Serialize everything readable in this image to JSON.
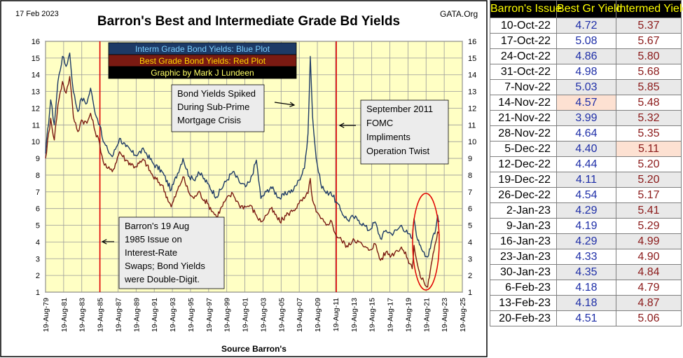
{
  "chart_data": {
    "type": "line",
    "date_stamp": "17 Feb 2023",
    "title": "Barron's Best and Intermediate Grade Bd Yields",
    "source_tag": "GATA.Org",
    "xlabel": "Source Barron's",
    "ylim": [
      1,
      16
    ],
    "y_ticks": [
      1,
      2,
      3,
      4,
      5,
      6,
      7,
      8,
      9,
      10,
      11,
      12,
      13,
      14,
      15,
      16
    ],
    "x_range": [
      1979.63,
      2025.63
    ],
    "x_ticks": [
      "19-Aug-79",
      "19-Aug-81",
      "19-Aug-83",
      "19-Aug-85",
      "19-Aug-87",
      "19-Aug-89",
      "19-Aug-91",
      "19-Aug-93",
      "19-Aug-95",
      "19-Aug-97",
      "19-Aug-99",
      "19-Aug-01",
      "19-Aug-03",
      "19-Aug-05",
      "19-Aug-07",
      "19-Aug-09",
      "19-Aug-11",
      "19-Aug-13",
      "19-Aug-15",
      "19-Aug-17",
      "19-Aug-19",
      "19-Aug-21",
      "19-Aug-23",
      "19-Aug-25"
    ],
    "grid": true,
    "legend": {
      "position": "top-left",
      "entries": [
        {
          "text": "Interm Grade Bond Yields: Blue Plot",
          "color": "#7cd0ff",
          "bg": "#1d3a66"
        },
        {
          "text": "Best Grade Bond Yields: Red Plot",
          "color": "#ffd700",
          "bg": "#7a1a12"
        },
        {
          "text": "Graphic by Mark J Lundeen",
          "color": "#ffff66",
          "bg": "#000000"
        }
      ]
    },
    "vertical_markers": [
      1985.63,
      2011.72
    ],
    "annotations": [
      {
        "id": "subprime",
        "lines": [
          "Bond Yields Spiked",
          "During Sub-Prime",
          "Mortgage Crisis"
        ]
      },
      {
        "id": "twist",
        "lines": [
          "September 2011",
          "FOMC",
          "Impliments",
          "Operation Twist"
        ]
      },
      {
        "id": "swaps",
        "lines": [
          "Barron's 19 Aug",
          "1985 Issue on",
          "Interest-Rate",
          "Swaps;  Bond Yields",
          "were Double-Digit."
        ]
      }
    ],
    "series": [
      {
        "name": "Interm Grade Bond Yields",
        "color": "#1d3a66",
        "points": [
          [
            1979.63,
            9.3
          ],
          [
            1980.2,
            12.5
          ],
          [
            1980.6,
            11.0
          ],
          [
            1981.0,
            13.6
          ],
          [
            1981.5,
            15.1
          ],
          [
            1981.9,
            14.5
          ],
          [
            1982.3,
            15.3
          ],
          [
            1982.7,
            13.0
          ],
          [
            1983.2,
            11.8
          ],
          [
            1983.6,
            12.6
          ],
          [
            1984.2,
            12.3
          ],
          [
            1984.6,
            13.2
          ],
          [
            1985.0,
            12.0
          ],
          [
            1985.6,
            11.0
          ],
          [
            1986.0,
            10.0
          ],
          [
            1986.5,
            9.5
          ],
          [
            1987.0,
            9.1
          ],
          [
            1987.8,
            10.2
          ],
          [
            1988.5,
            9.7
          ],
          [
            1989.5,
            9.2
          ],
          [
            1990.5,
            9.5
          ],
          [
            1991.5,
            8.7
          ],
          [
            1992.5,
            8.2
          ],
          [
            1993.5,
            7.1
          ],
          [
            1994.8,
            9.0
          ],
          [
            1995.5,
            7.9
          ],
          [
            1996.0,
            7.7
          ],
          [
            1996.5,
            8.2
          ],
          [
            1997.5,
            7.5
          ],
          [
            1998.5,
            6.7
          ],
          [
            1999.5,
            7.6
          ],
          [
            2000.3,
            8.2
          ],
          [
            2001.0,
            7.6
          ],
          [
            2001.7,
            7.3
          ],
          [
            2002.2,
            7.6
          ],
          [
            2002.9,
            8.9
          ],
          [
            2003.4,
            6.6
          ],
          [
            2004.0,
            7.0
          ],
          [
            2004.5,
            7.3
          ],
          [
            2005.5,
            6.6
          ],
          [
            2006.4,
            7.0
          ],
          [
            2007.0,
            7.1
          ],
          [
            2007.6,
            7.7
          ],
          [
            2008.2,
            8.4
          ],
          [
            2008.6,
            10.5
          ],
          [
            2008.85,
            15.1
          ],
          [
            2009.1,
            11.5
          ],
          [
            2009.5,
            9.0
          ],
          [
            2010.0,
            7.5
          ],
          [
            2010.6,
            6.9
          ],
          [
            2011.1,
            7.0
          ],
          [
            2011.7,
            6.4
          ],
          [
            2012.3,
            5.8
          ],
          [
            2013.0,
            5.3
          ],
          [
            2013.6,
            5.5
          ],
          [
            2014.2,
            5.3
          ],
          [
            2014.8,
            5.0
          ],
          [
            2015.3,
            4.7
          ],
          [
            2016.0,
            5.2
          ],
          [
            2016.6,
            4.2
          ],
          [
            2017.2,
            4.7
          ],
          [
            2017.8,
            4.5
          ],
          [
            2018.4,
            4.7
          ],
          [
            2018.9,
            5.0
          ],
          [
            2019.6,
            4.5
          ],
          [
            2020.1,
            4.2
          ],
          [
            2020.3,
            5.4
          ],
          [
            2020.7,
            4.1
          ],
          [
            2021.0,
            3.8
          ],
          [
            2021.4,
            3.4
          ],
          [
            2021.8,
            3.1
          ],
          [
            2022.1,
            3.6
          ],
          [
            2022.4,
            4.4
          ],
          [
            2022.7,
            4.8
          ],
          [
            2022.9,
            5.6
          ],
          [
            2023.1,
            5.2
          ]
        ]
      },
      {
        "name": "Best Grade Bond Yields",
        "color": "#7a1a12",
        "points": [
          [
            1979.63,
            9.0
          ],
          [
            1980.2,
            11.4
          ],
          [
            1980.6,
            10.1
          ],
          [
            1981.0,
            12.2
          ],
          [
            1981.5,
            13.6
          ],
          [
            1981.9,
            12.9
          ],
          [
            1982.3,
            13.9
          ],
          [
            1982.7,
            11.5
          ],
          [
            1983.2,
            10.6
          ],
          [
            1983.6,
            11.3
          ],
          [
            1984.2,
            11.1
          ],
          [
            1984.6,
            11.7
          ],
          [
            1985.0,
            10.8
          ],
          [
            1985.6,
            9.9
          ],
          [
            1986.0,
            8.8
          ],
          [
            1986.5,
            8.4
          ],
          [
            1987.0,
            8.2
          ],
          [
            1987.8,
            9.4
          ],
          [
            1988.5,
            8.9
          ],
          [
            1989.5,
            8.5
          ],
          [
            1990.5,
            8.9
          ],
          [
            1991.5,
            7.9
          ],
          [
            1992.5,
            7.4
          ],
          [
            1993.5,
            6.1
          ],
          [
            1994.8,
            7.9
          ],
          [
            1995.5,
            6.9
          ],
          [
            1996.0,
            6.6
          ],
          [
            1996.5,
            7.0
          ],
          [
            1997.5,
            6.3
          ],
          [
            1998.5,
            5.5
          ],
          [
            1999.5,
            6.5
          ],
          [
            2000.3,
            6.9
          ],
          [
            2001.0,
            6.2
          ],
          [
            2001.7,
            6.1
          ],
          [
            2002.2,
            6.2
          ],
          [
            2002.9,
            5.6
          ],
          [
            2003.4,
            5.2
          ],
          [
            2004.0,
            5.6
          ],
          [
            2004.5,
            6.0
          ],
          [
            2005.5,
            5.2
          ],
          [
            2006.4,
            5.7
          ],
          [
            2007.0,
            5.9
          ],
          [
            2007.6,
            6.3
          ],
          [
            2008.2,
            6.6
          ],
          [
            2008.6,
            6.9
          ],
          [
            2008.85,
            7.8
          ],
          [
            2009.1,
            6.5
          ],
          [
            2009.5,
            5.8
          ],
          [
            2010.0,
            5.4
          ],
          [
            2010.6,
            5.0
          ],
          [
            2011.1,
            5.3
          ],
          [
            2011.7,
            4.4
          ],
          [
            2012.3,
            4.1
          ],
          [
            2013.0,
            3.7
          ],
          [
            2013.6,
            4.2
          ],
          [
            2014.2,
            4.0
          ],
          [
            2014.8,
            3.7
          ],
          [
            2015.3,
            3.5
          ],
          [
            2016.0,
            3.9
          ],
          [
            2016.6,
            2.9
          ],
          [
            2017.2,
            3.4
          ],
          [
            2017.8,
            3.2
          ],
          [
            2018.4,
            3.5
          ],
          [
            2018.9,
            3.7
          ],
          [
            2019.6,
            3.0
          ],
          [
            2020.1,
            2.4
          ],
          [
            2020.3,
            3.8
          ],
          [
            2020.7,
            2.6
          ],
          [
            2021.0,
            1.9
          ],
          [
            2021.4,
            1.6
          ],
          [
            2021.8,
            1.3
          ],
          [
            2022.1,
            2.3
          ],
          [
            2022.4,
            3.3
          ],
          [
            2022.7,
            4.0
          ],
          [
            2022.9,
            4.6
          ],
          [
            2023.1,
            4.4
          ]
        ]
      }
    ]
  },
  "table": {
    "headers": [
      "Barron's Issue",
      "Best Gr Yield",
      "Intermed Yield"
    ],
    "rows": [
      {
        "issue": "10-Oct-22",
        "best": "4.72",
        "interm": "5.37"
      },
      {
        "issue": "17-Oct-22",
        "best": "5.08",
        "interm": "5.67"
      },
      {
        "issue": "24-Oct-22",
        "best": "4.86",
        "interm": "5.80"
      },
      {
        "issue": "31-Oct-22",
        "best": "4.98",
        "interm": "5.68"
      },
      {
        "issue": "7-Nov-22",
        "best": "5.03",
        "interm": "5.85"
      },
      {
        "issue": "14-Nov-22",
        "best": "4.57",
        "interm": "5.48",
        "highlight_best": true
      },
      {
        "issue": "21-Nov-22",
        "best": "3.99",
        "interm": "5.32"
      },
      {
        "issue": "28-Nov-22",
        "best": "4.64",
        "interm": "5.35"
      },
      {
        "issue": "5-Dec-22",
        "best": "4.40",
        "interm": "5.11",
        "highlight_interm": true
      },
      {
        "issue": "12-Dec-22",
        "best": "4.44",
        "interm": "5.20"
      },
      {
        "issue": "19-Dec-22",
        "best": "4.11",
        "interm": "5.20"
      },
      {
        "issue": "26-Dec-22",
        "best": "4.54",
        "interm": "5.17"
      },
      {
        "issue": "2-Jan-23",
        "best": "4.29",
        "interm": "5.41"
      },
      {
        "issue": "9-Jan-23",
        "best": "4.19",
        "interm": "5.29"
      },
      {
        "issue": "16-Jan-23",
        "best": "4.29",
        "interm": "4.99"
      },
      {
        "issue": "23-Jan-23",
        "best": "4.33",
        "interm": "4.90"
      },
      {
        "issue": "30-Jan-23",
        "best": "4.35",
        "interm": "4.84"
      },
      {
        "issue": "6-Feb-23",
        "best": "4.18",
        "interm": "4.79"
      },
      {
        "issue": "13-Feb-23",
        "best": "4.18",
        "interm": "4.87"
      },
      {
        "issue": "20-Feb-23",
        "best": "4.51",
        "interm": "5.06"
      }
    ]
  }
}
